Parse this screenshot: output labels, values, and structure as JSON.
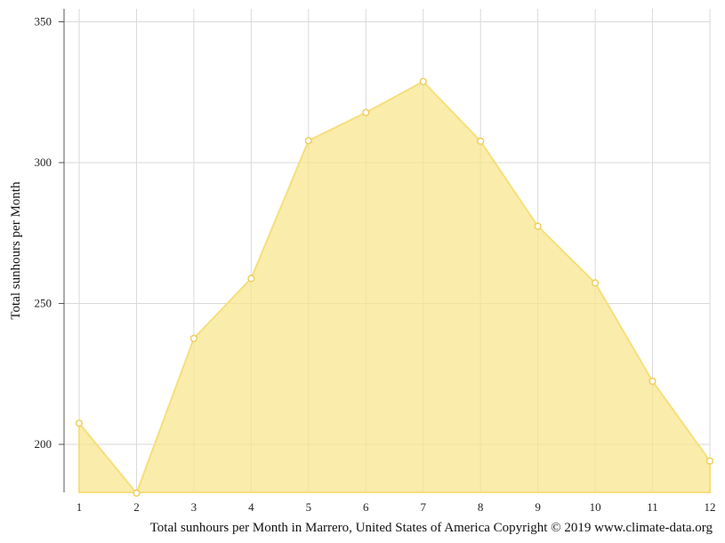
{
  "chart_data": {
    "type": "area",
    "x": [
      1,
      2,
      3,
      4,
      5,
      6,
      7,
      8,
      9,
      10,
      11,
      12
    ],
    "series": [
      {
        "values": [
          207.5,
          182.7,
          237.6,
          258.9,
          307.8,
          317.8,
          328.8,
          307.6,
          277.4,
          257.3,
          222.4,
          194.1
        ]
      }
    ],
    "ylabel": "Total sunhours per Month",
    "caption": "Total sunhours per Month in Marrero, United States of America Copyright © 2019 www.climate-data.org",
    "yticks": [
      200,
      250,
      300,
      350
    ],
    "xticks": [
      1,
      2,
      3,
      4,
      5,
      6,
      7,
      8,
      9,
      10,
      11,
      12
    ],
    "ylim": [
      182.7,
      355
    ],
    "xlim": [
      1,
      12
    ],
    "grid": true,
    "colors": {
      "fill": "#f8e48a",
      "line": "#f6df7c",
      "point_stroke": "#eecc55"
    }
  }
}
